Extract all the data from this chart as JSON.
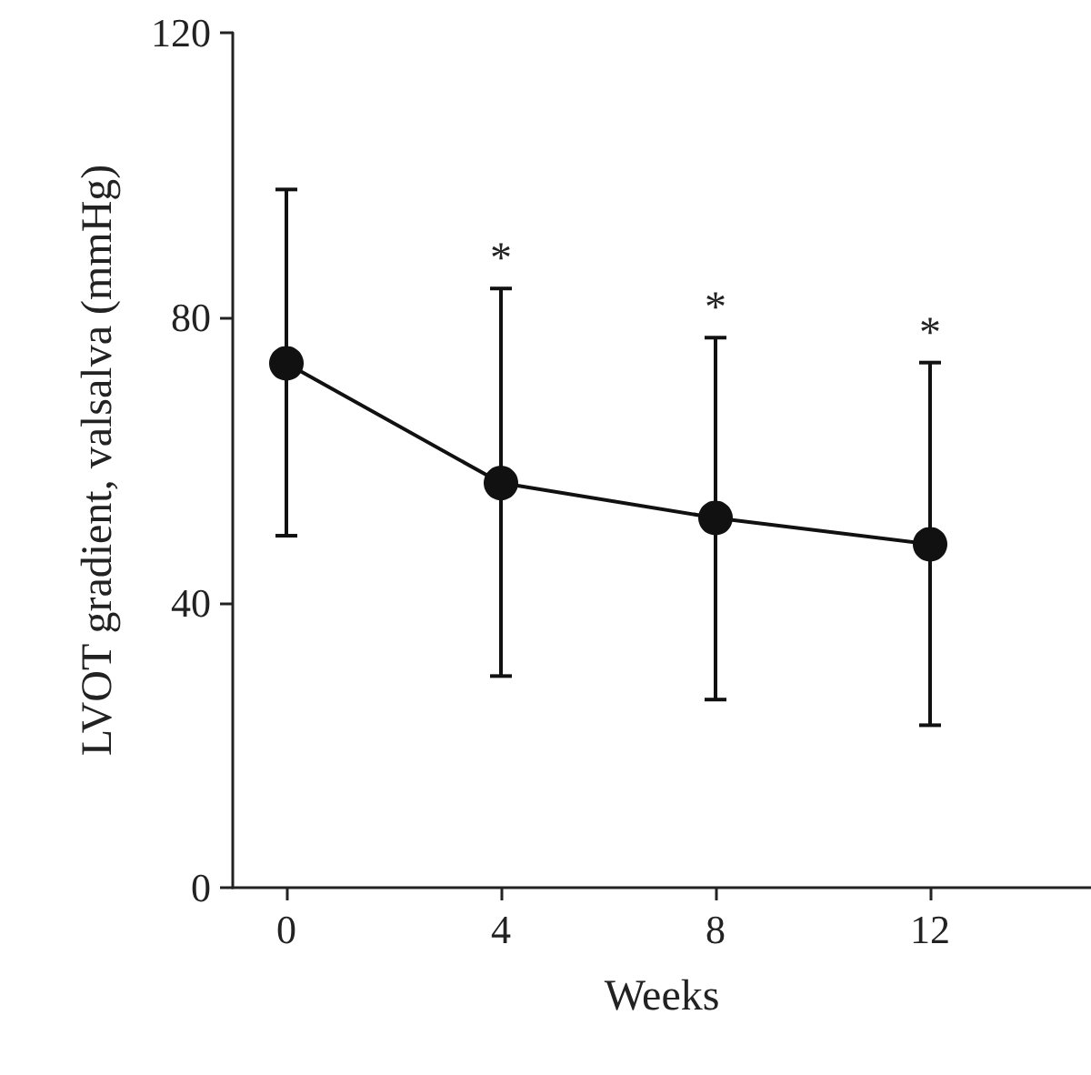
{
  "chart_data": {
    "type": "line",
    "xlabel": "Weeks",
    "ylabel": "LVOT gradient, valsalva (mmHg)",
    "x": [
      0,
      4,
      8,
      12
    ],
    "series": [
      {
        "color": "#111111",
        "values": [
          73.6,
          56.8,
          51.9,
          48.2
        ],
        "errors": [
          [
            49.4,
            98.0
          ],
          [
            29.7,
            84.1
          ],
          [
            26.4,
            77.2
          ],
          [
            22.8,
            73.7
          ]
        ]
      }
    ],
    "xlim": [
      -1,
      15
    ],
    "xticks": [
      0,
      4,
      8,
      12
    ],
    "ylim": [
      0,
      120
    ],
    "yticks": [
      0,
      40,
      80,
      120
    ],
    "annotations": [
      {
        "text": "*",
        "x": 4,
        "y": 84.1
      },
      {
        "text": "*",
        "x": 8,
        "y": 77.2
      },
      {
        "text": "*",
        "x": 12,
        "y": 73.7
      }
    ],
    "grid": false,
    "marker": "circle",
    "line_style": "solid"
  }
}
